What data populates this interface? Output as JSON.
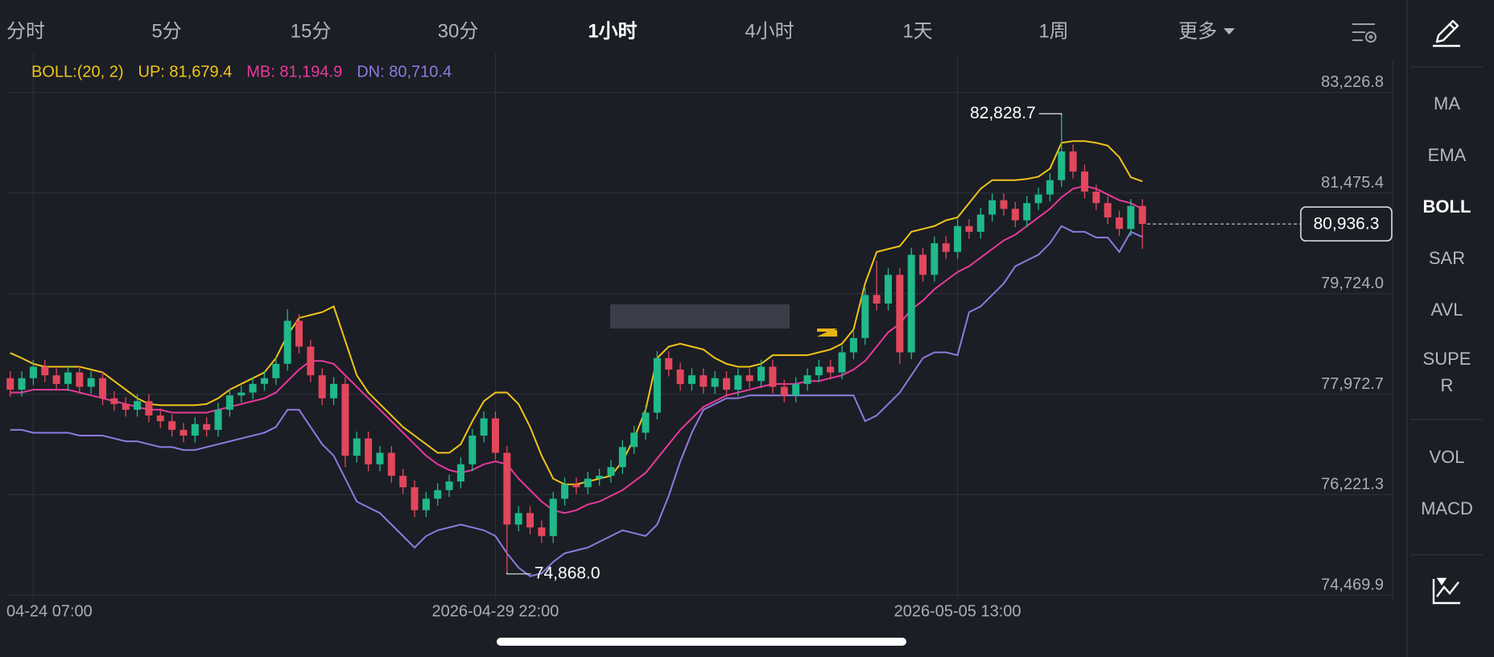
{
  "tabs": [
    "分时",
    "5分",
    "15分",
    "30分",
    "1小时",
    "4小时",
    "1天",
    "1周",
    "更多"
  ],
  "active_tab": 4,
  "indicators": {
    "main": [
      "MA",
      "EMA",
      "BOLL",
      "SAR",
      "AVL",
      "SUPER"
    ],
    "sub": [
      "VOL",
      "MACD"
    ]
  },
  "active_indicator": 2,
  "chart_data": {
    "type": "candlestick",
    "indicator": "BOLL:(20, 2)",
    "categories": [
      null,
      null,
      "04-24 07:00",
      null,
      null,
      null,
      null,
      null,
      null,
      null,
      null,
      null,
      null,
      null,
      null,
      null,
      null,
      null,
      null,
      null,
      null,
      null,
      null,
      null,
      null,
      null,
      null,
      null,
      null,
      null,
      null,
      null,
      null,
      null,
      null,
      null,
      null,
      null,
      null,
      null,
      null,
      null,
      "2026-04-29 22:00",
      null,
      null,
      null,
      null,
      null,
      null,
      null,
      null,
      null,
      null,
      null,
      null,
      null,
      null,
      null,
      null,
      null,
      null,
      null,
      null,
      null,
      null,
      null,
      null,
      null,
      null,
      null,
      null,
      null,
      null,
      null,
      null,
      null,
      null,
      null,
      null,
      null,
      null,
      null,
      "2026-05-05 13:00",
      null,
      null,
      null,
      null,
      null,
      null,
      null,
      null,
      null,
      null,
      null,
      null,
      null,
      null,
      null,
      null
    ],
    "open": [
      78250,
      78050,
      78250,
      78450,
      78300,
      78150,
      78350,
      78100,
      78250,
      77900,
      77800,
      77700,
      77850,
      77600,
      77500,
      77350,
      77250,
      77450,
      77350,
      77700,
      77950,
      78000,
      78150,
      78250,
      78500,
      79250,
      78800,
      78300,
      77900,
      78150,
      76900,
      77200,
      76750,
      76950,
      76550,
      76350,
      75950,
      76150,
      76300,
      76450,
      76750,
      77250,
      77550,
      76950,
      75700,
      75900,
      75650,
      75500,
      76150,
      76400,
      76350,
      76500,
      76550,
      76700,
      77050,
      77300,
      77650,
      78600,
      78400,
      78150,
      78300,
      78100,
      78250,
      78050,
      78300,
      78200,
      78450,
      78100,
      77950,
      78150,
      78300,
      78450,
      78350,
      78700,
      78950,
      79700,
      79550,
      80050,
      78700,
      80400,
      80050,
      80600,
      80450,
      80900,
      80800,
      81100,
      81350,
      81200,
      81000,
      81300,
      81450,
      81700,
      82200,
      81850,
      81500,
      81300,
      81050,
      80850,
      81250
    ],
    "high": [
      78370,
      78370,
      78570,
      78570,
      78420,
      78470,
      78470,
      78370,
      78370,
      78020,
      77920,
      77970,
      77970,
      77720,
      77620,
      77470,
      77570,
      77570,
      77820,
      78070,
      78120,
      78270,
      78370,
      78620,
      79450,
      79370,
      78920,
      78420,
      78270,
      78270,
      77320,
      77320,
      77070,
      77070,
      76670,
      76470,
      76270,
      76420,
      76570,
      76870,
      77370,
      77670,
      77670,
      77070,
      76020,
      76020,
      75770,
      76270,
      76520,
      76520,
      76620,
      76670,
      76820,
      77170,
      77420,
      77770,
      78720,
      78720,
      78520,
      78420,
      78420,
      78370,
      78370,
      78420,
      78420,
      78570,
      78570,
      78220,
      78270,
      78420,
      78570,
      78570,
      78820,
      79070,
      79820,
      80300,
      80170,
      80170,
      80520,
      80520,
      80720,
      80720,
      81020,
      81020,
      81220,
      81470,
      81470,
      81320,
      81420,
      81570,
      81820,
      82828.7,
      82320,
      81970,
      81620,
      81420,
      81170,
      81370,
      81370
    ],
    "low": [
      77930,
      77930,
      78130,
      78180,
      78030,
      78030,
      77980,
      77980,
      77780,
      77680,
      77580,
      77580,
      77480,
      77380,
      77230,
      77130,
      77130,
      77230,
      77230,
      77580,
      77830,
      77880,
      78030,
      78130,
      78380,
      78680,
      78180,
      77780,
      77780,
      76700,
      76780,
      76630,
      76630,
      76430,
      76230,
      75830,
      75830,
      76030,
      76180,
      76330,
      76630,
      77130,
      76830,
      74868.0,
      75580,
      75530,
      75380,
      75380,
      76030,
      76230,
      76230,
      76380,
      76430,
      76580,
      76930,
      77180,
      77530,
      78280,
      78030,
      78030,
      77980,
      77980,
      77930,
      77930,
      78080,
      78080,
      77980,
      77830,
      77830,
      78030,
      78180,
      78230,
      78230,
      78580,
      78830,
      79430,
      79430,
      78500,
      78580,
      79930,
      79930,
      80330,
      80330,
      80680,
      80680,
      80980,
      81080,
      80880,
      80880,
      81180,
      81330,
      81580,
      81730,
      81380,
      81180,
      80930,
      80730,
      80730,
      80500
    ],
    "close": [
      78050,
      78250,
      78450,
      78300,
      78150,
      78350,
      78100,
      78250,
      77900,
      77800,
      77700,
      77850,
      77600,
      77500,
      77350,
      77250,
      77450,
      77350,
      77700,
      77950,
      78000,
      78150,
      78250,
      78500,
      79250,
      78800,
      78300,
      77900,
      78150,
      76900,
      77200,
      76750,
      76950,
      76550,
      76350,
      75950,
      76150,
      76300,
      76450,
      76750,
      77250,
      77550,
      76950,
      75700,
      75900,
      75650,
      75500,
      76150,
      76400,
      76350,
      76500,
      76550,
      76700,
      77050,
      77300,
      77650,
      78600,
      78400,
      78150,
      78300,
      78100,
      78250,
      78050,
      78300,
      78200,
      78450,
      78100,
      77950,
      78150,
      78300,
      78450,
      78350,
      78700,
      78950,
      79700,
      79550,
      80050,
      78700,
      80400,
      80050,
      80600,
      80450,
      80900,
      80800,
      81100,
      81350,
      81200,
      81000,
      81300,
      81450,
      81700,
      82200,
      81850,
      81500,
      81300,
      81050,
      80850,
      81250,
      80936.3
    ],
    "up_color": "#1fb98a",
    "down_color": "#e2475c",
    "series": [
      {
        "name": "UP: 81,679.4",
        "color": "#f0c419",
        "values": [
          78690,
          78600,
          78500,
          78450,
          78450,
          78450,
          78450,
          78400,
          78350,
          78200,
          78050,
          77900,
          77800,
          77780,
          77780,
          77780,
          77780,
          77800,
          77900,
          78050,
          78150,
          78250,
          78350,
          78600,
          79000,
          79300,
          79350,
          79400,
          79500,
          78900,
          78300,
          78000,
          77800,
          77600,
          77400,
          77250,
          77100,
          76950,
          76950,
          77100,
          77500,
          77850,
          78000,
          78000,
          77800,
          77400,
          76900,
          76500,
          76400,
          76400,
          76450,
          76500,
          76550,
          76800,
          77200,
          77700,
          78600,
          78800,
          78850,
          78800,
          78750,
          78600,
          78500,
          78450,
          78450,
          78500,
          78650,
          78650,
          78650,
          78650,
          78700,
          78750,
          78850,
          79100,
          79900,
          80450,
          80500,
          80550,
          80800,
          80850,
          80900,
          81000,
          81050,
          81300,
          81550,
          81700,
          81700,
          81700,
          81720,
          81760,
          81900,
          82350,
          82380,
          82380,
          82350,
          82300,
          82100,
          81750,
          81679.4
        ]
      },
      {
        "name": "MB: 81,194.9",
        "color": "#e8399b",
        "values": [
          78000,
          78000,
          78050,
          78050,
          78050,
          78050,
          78000,
          77950,
          77900,
          77850,
          77800,
          77750,
          77700,
          77700,
          77650,
          77650,
          77650,
          77650,
          77700,
          77750,
          77800,
          77850,
          77900,
          78000,
          78200,
          78400,
          78550,
          78550,
          78500,
          78300,
          78100,
          77900,
          77700,
          77500,
          77300,
          77100,
          76900,
          76750,
          76650,
          76600,
          76650,
          76750,
          76800,
          76750,
          76500,
          76300,
          76100,
          75950,
          75900,
          75950,
          76050,
          76100,
          76200,
          76300,
          76450,
          76600,
          76850,
          77100,
          77350,
          77550,
          77750,
          77850,
          77950,
          78000,
          78050,
          78100,
          78150,
          78150,
          78150,
          78200,
          78200,
          78250,
          78300,
          78400,
          78550,
          78800,
          79050,
          79200,
          79450,
          79600,
          79800,
          79950,
          80100,
          80200,
          80350,
          80500,
          80650,
          80750,
          80900,
          81050,
          81200,
          81400,
          81550,
          81600,
          81550,
          81450,
          81350,
          81300,
          81194.9
        ]
      },
      {
        "name": "DN: 80,710.4",
        "color": "#8e7ade",
        "values": [
          77350,
          77350,
          77300,
          77300,
          77300,
          77300,
          77250,
          77250,
          77250,
          77200,
          77150,
          77150,
          77100,
          77050,
          77050,
          77000,
          77000,
          77050,
          77100,
          77150,
          77200,
          77250,
          77300,
          77400,
          77700,
          77700,
          77400,
          77100,
          76900,
          76500,
          76100,
          76000,
          75900,
          75700,
          75500,
          75300,
          75500,
          75600,
          75650,
          75700,
          75650,
          75600,
          75500,
          75200,
          74950,
          74800,
          74850,
          75050,
          75200,
          75250,
          75300,
          75400,
          75500,
          75600,
          75550,
          75500,
          75700,
          76200,
          76800,
          77300,
          77700,
          77800,
          77900,
          77900,
          77950,
          77950,
          77950,
          77950,
          77950,
          77950,
          77950,
          77950,
          77950,
          77950,
          77500,
          77600,
          77800,
          78000,
          78300,
          78600,
          78700,
          78700,
          78650,
          79400,
          79500,
          79700,
          79900,
          80200,
          80300,
          80400,
          80600,
          80900,
          80800,
          80800,
          80700,
          80700,
          80450,
          80800,
          80710.4
        ]
      }
    ],
    "ylim": [
      74400,
      83800
    ],
    "yticks": [
      {
        "value": 83226.8,
        "label": "83,226.8"
      },
      {
        "value": 81475.4,
        "label": "81,475.4"
      },
      {
        "value": 79724.0,
        "label": "79,724.0"
      },
      {
        "value": 77972.7,
        "label": "77,972.7"
      },
      {
        "value": 76221.3,
        "label": "76,221.3"
      },
      {
        "value": 74469.9,
        "label": "74,469.9"
      }
    ],
    "grid": true,
    "max_label": {
      "value": 82828.7,
      "label": "82,828.7"
    },
    "min_label": {
      "value": 74868.0,
      "label": "74,868.0"
    },
    "last_price": {
      "value": 80936.3,
      "label": "80,936.3"
    }
  }
}
